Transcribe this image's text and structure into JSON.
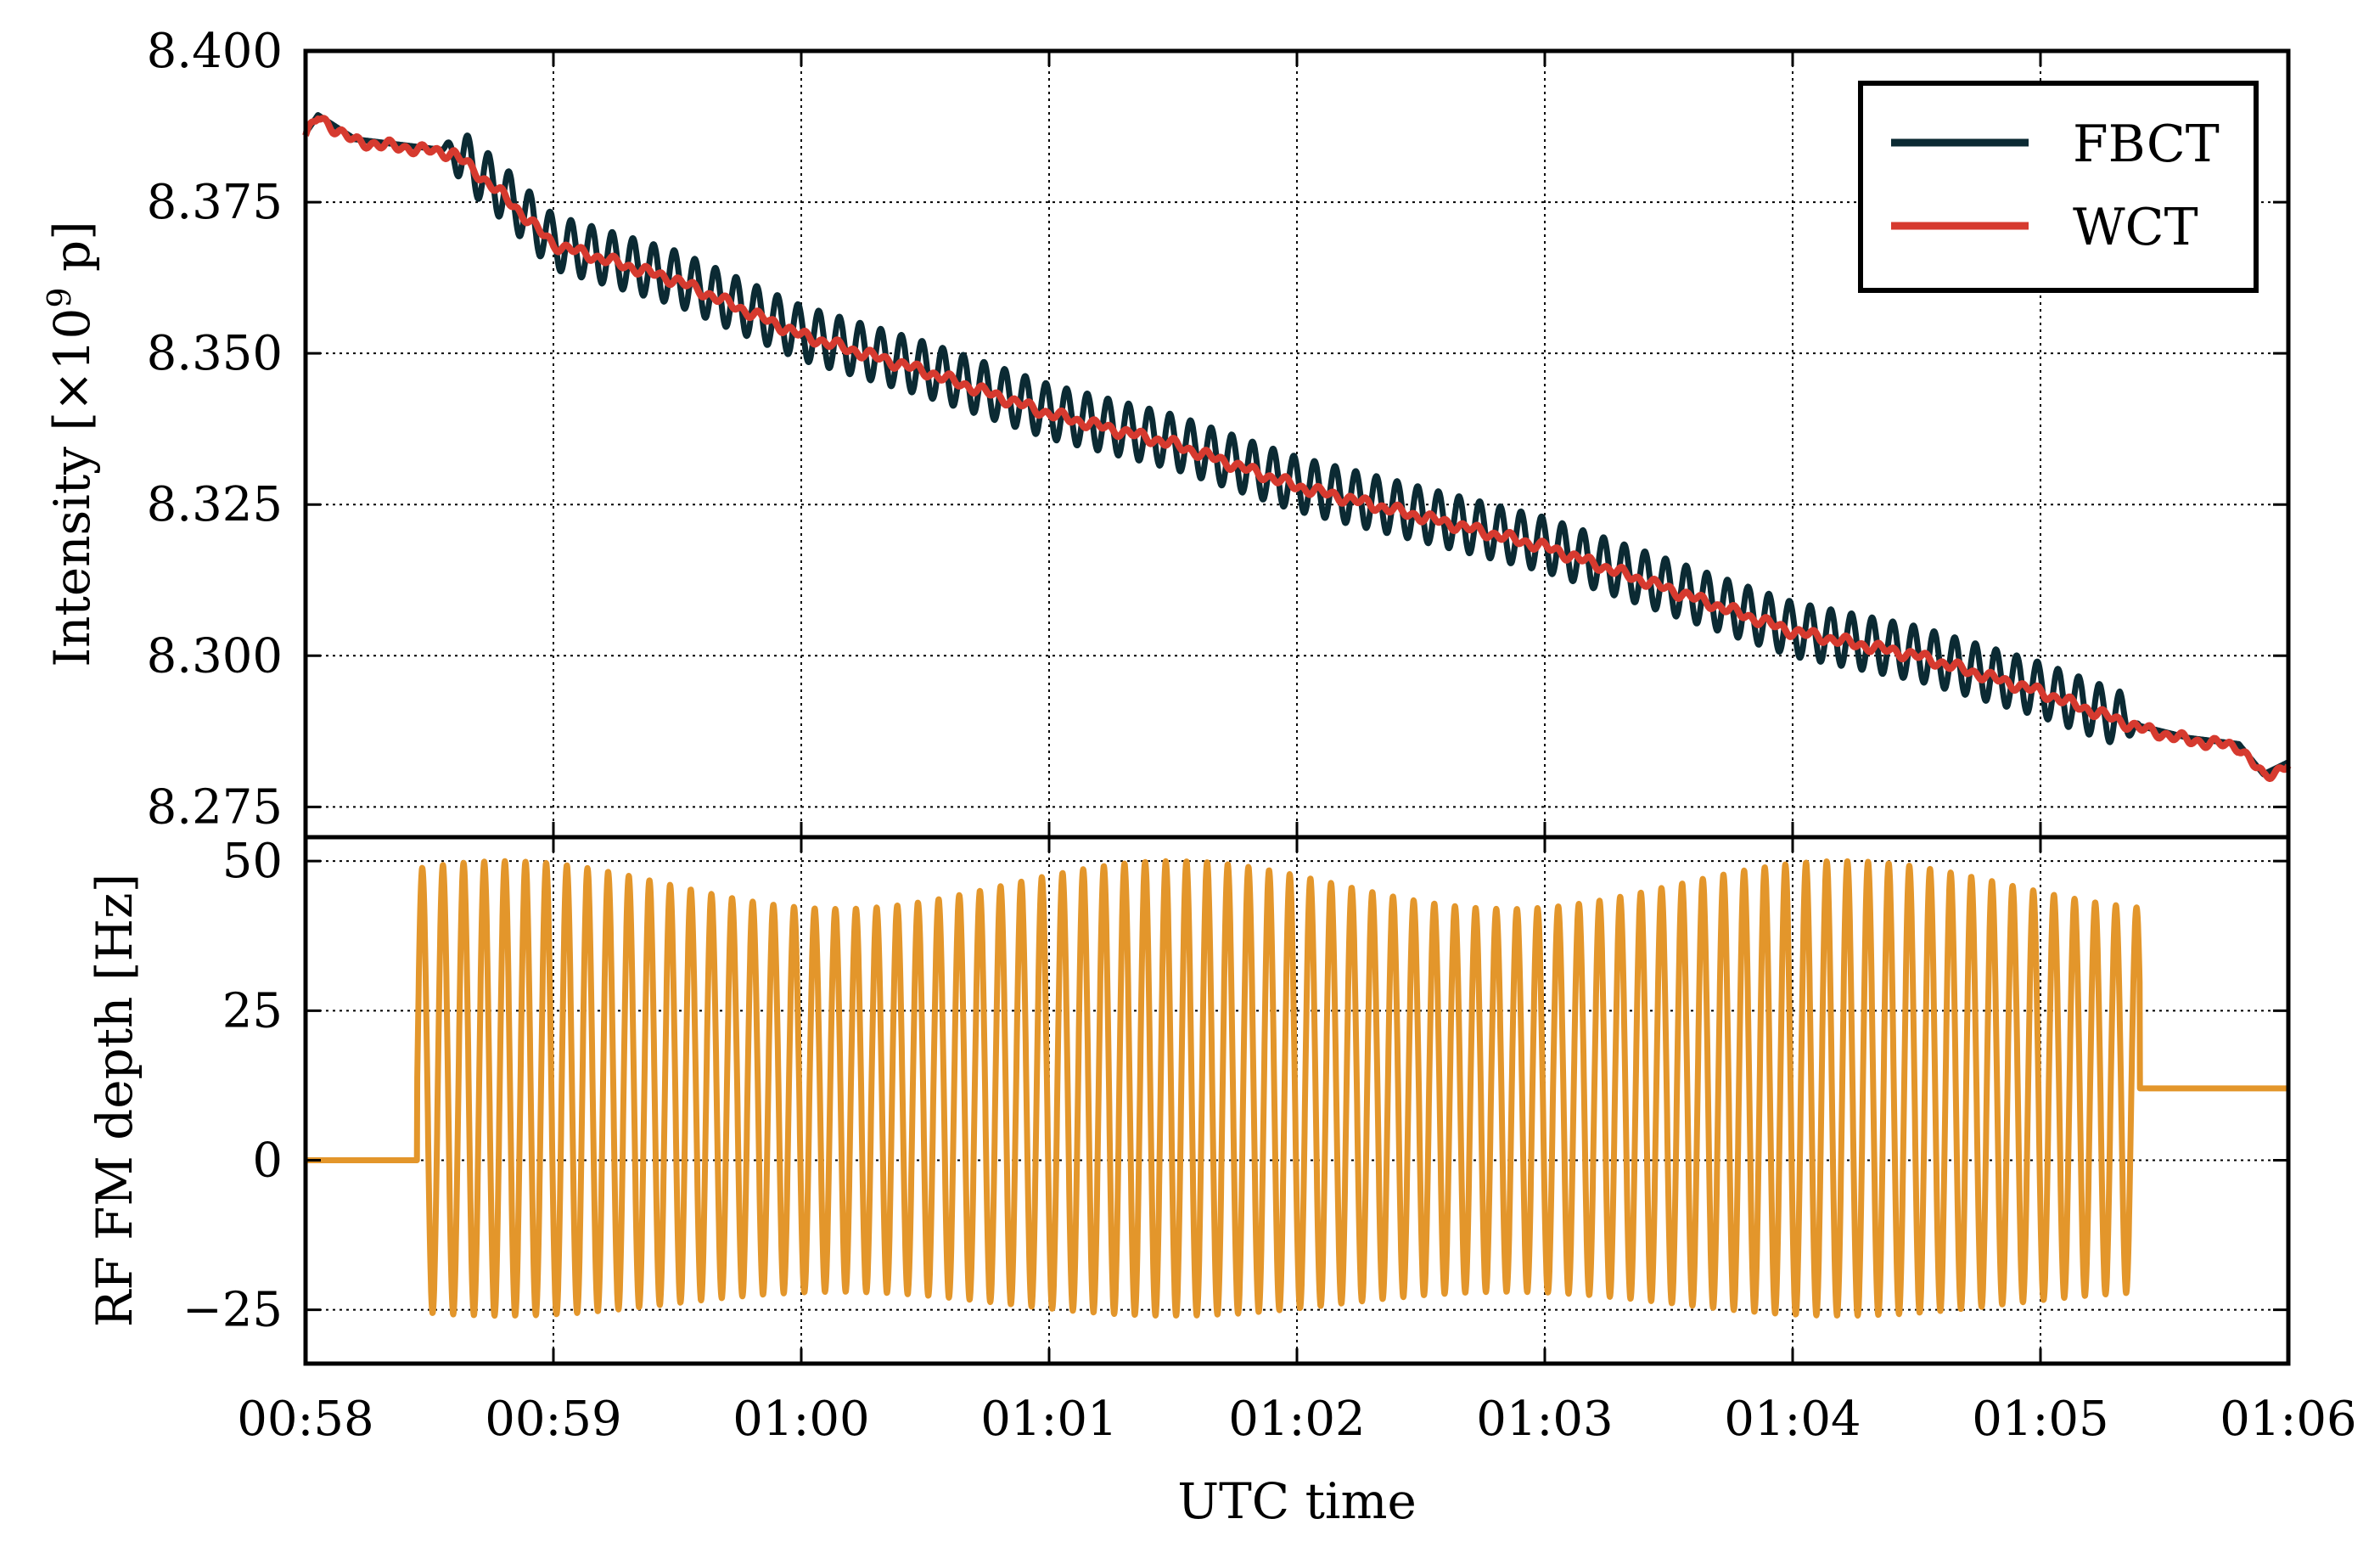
{
  "chart_data": [
    {
      "type": "line",
      "panel": "top",
      "ylabel_main": "Intensity [×10",
      "ylabel_exp": "9",
      "ylabel_tail": " p]",
      "ylim": [
        8.27,
        8.4
      ],
      "yticks": [
        8.275,
        8.3,
        8.325,
        8.35,
        8.375,
        8.4
      ],
      "ytick_labels": [
        "8.275",
        "8.300",
        "8.325",
        "8.350",
        "8.375",
        "8.400"
      ],
      "grid": true,
      "legend_position": "top-right",
      "series": [
        {
          "name": "FBCT",
          "color": "#0b2a33",
          "description_values": {
            "start": 8.388,
            "end": 8.282,
            "oscillation_amplitude": 0.0045,
            "oscillation_start_min": 0.55,
            "oscillation_end_min": 7.4,
            "cycles_per_min": 12
          }
        },
        {
          "name": "WCT",
          "color": "#d63a2f",
          "x": [
            0,
            0.05,
            0.2,
            0.4,
            0.6,
            0.8,
            1.0,
            1.5,
            2.0,
            2.5,
            3.0,
            3.5,
            4.0,
            4.5,
            5.0,
            5.5,
            6.0,
            6.5,
            7.0,
            7.4,
            7.6,
            7.8,
            7.9,
            8.0
          ],
          "y": [
            8.386,
            8.389,
            8.385,
            8.384,
            8.383,
            8.376,
            8.368,
            8.362,
            8.353,
            8.347,
            8.34,
            8.335,
            8.328,
            8.323,
            8.318,
            8.311,
            8.304,
            8.3,
            8.294,
            8.288,
            8.286,
            8.285,
            8.28,
            8.282
          ]
        }
      ]
    },
    {
      "type": "line",
      "panel": "bottom",
      "ylabel": "RF FM depth [Hz]",
      "ylim": [
        -34,
        54
      ],
      "yticks": [
        -25,
        0,
        25,
        50
      ],
      "ytick_labels": [
        "−25",
        "0",
        "25",
        "50"
      ],
      "grid": true,
      "series": [
        {
          "name": "RF FM depth",
          "color": "#e3962b",
          "description_values": {
            "initial_value": 0,
            "final_value": 12,
            "modulation_start_min": 0.45,
            "modulation_end_min": 7.4,
            "center": 12,
            "max_peak": 50,
            "min_trough": -26,
            "amplitude_dip_peak": 42,
            "amplitude_dip_trough": -22,
            "cycles_per_min": 12
          }
        }
      ]
    }
  ],
  "xaxis": {
    "label": "UTC time",
    "range_min": [
      0,
      8
    ],
    "tick_labels": [
      "00:58",
      "00:59",
      "01:00",
      "01:01",
      "01:02",
      "01:03",
      "01:04",
      "01:05",
      "01:06"
    ]
  },
  "legend": {
    "items": [
      {
        "label": "FBCT",
        "color": "#0b2a33"
      },
      {
        "label": "WCT",
        "color": "#d63a2f"
      }
    ]
  }
}
